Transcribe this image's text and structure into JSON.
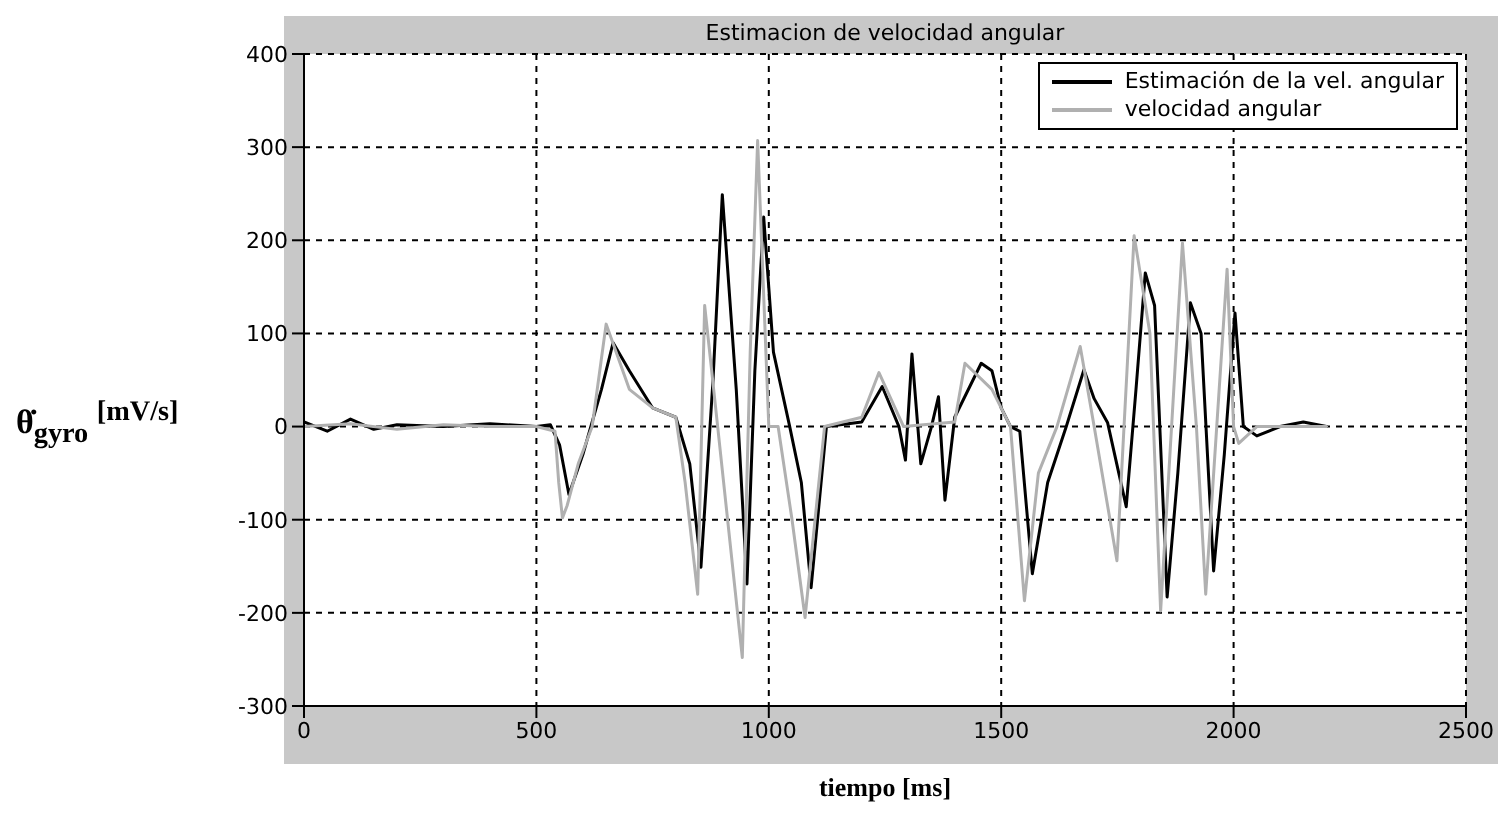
{
  "chart_data": {
    "type": "line",
    "title": "Estimacion de velocidad angular",
    "xlabel": "tiempo [ms]",
    "ylabel": "θ̇$_{gyro}$ $^{[mV/s]}$",
    "xlim": [
      0,
      2500
    ],
    "xticks": [
      0,
      500,
      1000,
      1500,
      2000,
      2500
    ],
    "ylim": [
      -300,
      400
    ],
    "yticks": [
      -300,
      -200,
      -100,
      0,
      100,
      200,
      300,
      400
    ],
    "grid": true,
    "legend": "top right",
    "line_style": "solid",
    "marker": "none",
    "series": [
      {
        "name": "Estimación de la vel. angular",
        "color": "#000000",
        "x": [
          0,
          50,
          100,
          150,
          200,
          300,
          400,
          500,
          530,
          550,
          570,
          600,
          640,
          665,
          700,
          750,
          800,
          830,
          854,
          880,
          900,
          930,
          953,
          970,
          989,
          1010,
          1045,
          1070,
          1091,
          1124,
          1200,
          1244,
          1280,
          1294,
          1308,
          1327,
          1350,
          1365,
          1379,
          1400,
          1457,
          1480,
          1500,
          1520,
          1540,
          1567,
          1600,
          1640,
          1678,
          1700,
          1729,
          1769,
          1790,
          1810,
          1830,
          1857,
          1880,
          1907,
          1930,
          1957,
          1980,
          2003,
          2021,
          2050,
          2100,
          2150,
          2200
        ],
        "values": [
          5,
          -5,
          8,
          -3,
          2,
          0,
          3,
          0,
          2,
          -20,
          -73,
          -30,
          40,
          90,
          60,
          20,
          10,
          -40,
          -151,
          50,
          249,
          40,
          -169,
          60,
          225,
          80,
          0,
          -60,
          -173,
          0,
          5,
          43,
          0,
          -36,
          78,
          -40,
          0,
          32,
          -79,
          10,
          68,
          60,
          20,
          0,
          -5,
          -158,
          -60,
          0,
          61,
          30,
          4,
          -86,
          40,
          165,
          130,
          -183,
          -50,
          133,
          100,
          -155,
          -30,
          122,
          0,
          -10,
          0,
          5,
          0
        ]
      },
      {
        "name": "velocidad angular",
        "color": "#b0b0b0",
        "x": [
          0,
          100,
          200,
          300,
          400,
          500,
          540,
          548,
          556,
          566,
          590,
          620,
          650,
          700,
          750,
          800,
          820,
          847,
          862,
          890,
          943,
          960,
          976,
          1000,
          1020,
          1050,
          1078,
          1120,
          1200,
          1237,
          1290,
          1400,
          1422,
          1480,
          1520,
          1550,
          1580,
          1620,
          1670,
          1700,
          1749,
          1786,
          1820,
          1843,
          1890,
          1920,
          1940,
          1986,
          2000,
          2011,
          2050,
          2200
        ],
        "values": [
          0,
          3,
          -3,
          2,
          0,
          0,
          -5,
          -60,
          -98,
          -85,
          -40,
          0,
          110,
          40,
          20,
          10,
          -60,
          -180,
          130,
          0,
          -248,
          80,
          307,
          0,
          0,
          -100,
          -205,
          0,
          10,
          58,
          0,
          5,
          68,
          40,
          0,
          -187,
          -50,
          0,
          86,
          0,
          -144,
          205,
          100,
          -198,
          197,
          0,
          -180,
          169,
          0,
          -18,
          0,
          0
        ]
      }
    ]
  }
}
